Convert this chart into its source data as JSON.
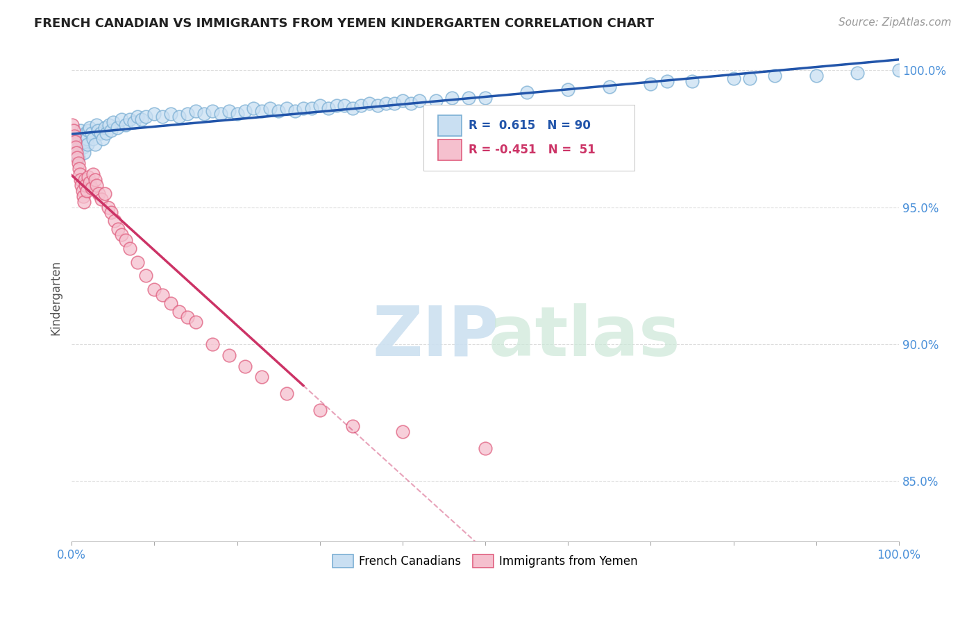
{
  "title": "FRENCH CANADIAN VS IMMIGRANTS FROM YEMEN KINDERGARTEN CORRELATION CHART",
  "source": "Source: ZipAtlas.com",
  "ylabel": "Kindergarten",
  "xmin": 0.0,
  "xmax": 1.0,
  "ymin": 0.828,
  "ymax": 1.006,
  "y_tick_values": [
    0.85,
    0.9,
    0.95,
    1.0
  ],
  "y_tick_labels": [
    "85.0%",
    "90.0%",
    "95.0%",
    "100.0%"
  ],
  "x_tick_positions": [
    0.0,
    0.1,
    0.2,
    0.3,
    0.4,
    0.5,
    0.6,
    0.7,
    0.8,
    0.9,
    1.0
  ],
  "grid_color": "#dddddd",
  "background_color": "#ffffff",
  "blue_edge_color": "#7bafd4",
  "blue_face_color": "#c9dff2",
  "pink_edge_color": "#e06080",
  "pink_face_color": "#f5c0ce",
  "blue_line_color": "#2255aa",
  "pink_line_color": "#cc3366",
  "R_blue": 0.615,
  "N_blue": 90,
  "R_pink": -0.451,
  "N_pink": 51,
  "legend_label_blue": "French Canadians",
  "legend_label_pink": "Immigrants from Yemen",
  "blue_x": [
    0.001,
    0.002,
    0.003,
    0.004,
    0.005,
    0.006,
    0.007,
    0.008,
    0.009,
    0.01,
    0.011,
    0.012,
    0.013,
    0.014,
    0.015,
    0.016,
    0.017,
    0.018,
    0.019,
    0.02,
    0.022,
    0.024,
    0.026,
    0.028,
    0.03,
    0.032,
    0.035,
    0.038,
    0.04,
    0.042,
    0.045,
    0.048,
    0.05,
    0.055,
    0.06,
    0.065,
    0.07,
    0.075,
    0.08,
    0.085,
    0.09,
    0.1,
    0.11,
    0.12,
    0.13,
    0.14,
    0.15,
    0.16,
    0.17,
    0.18,
    0.19,
    0.2,
    0.21,
    0.22,
    0.23,
    0.24,
    0.25,
    0.26,
    0.27,
    0.28,
    0.29,
    0.3,
    0.31,
    0.32,
    0.33,
    0.34,
    0.35,
    0.36,
    0.37,
    0.38,
    0.39,
    0.4,
    0.41,
    0.42,
    0.44,
    0.46,
    0.48,
    0.5,
    0.55,
    0.6,
    0.65,
    0.7,
    0.72,
    0.75,
    0.8,
    0.82,
    0.85,
    0.9,
    0.95,
    1.0
  ],
  "blue_y": [
    0.975,
    0.974,
    0.973,
    0.972,
    0.971,
    0.97,
    0.969,
    0.968,
    0.972,
    0.975,
    0.978,
    0.976,
    0.974,
    0.972,
    0.97,
    0.974,
    0.977,
    0.975,
    0.973,
    0.978,
    0.979,
    0.977,
    0.975,
    0.973,
    0.98,
    0.978,
    0.977,
    0.975,
    0.979,
    0.977,
    0.98,
    0.978,
    0.981,
    0.979,
    0.982,
    0.98,
    0.982,
    0.981,
    0.983,
    0.982,
    0.983,
    0.984,
    0.983,
    0.984,
    0.983,
    0.984,
    0.985,
    0.984,
    0.985,
    0.984,
    0.985,
    0.984,
    0.985,
    0.986,
    0.985,
    0.986,
    0.985,
    0.986,
    0.985,
    0.986,
    0.986,
    0.987,
    0.986,
    0.987,
    0.987,
    0.986,
    0.987,
    0.988,
    0.987,
    0.988,
    0.988,
    0.989,
    0.988,
    0.989,
    0.989,
    0.99,
    0.99,
    0.99,
    0.992,
    0.993,
    0.994,
    0.995,
    0.996,
    0.996,
    0.997,
    0.997,
    0.998,
    0.998,
    0.999,
    1.0
  ],
  "pink_x": [
    0.001,
    0.002,
    0.003,
    0.004,
    0.005,
    0.006,
    0.007,
    0.008,
    0.009,
    0.01,
    0.011,
    0.012,
    0.013,
    0.014,
    0.015,
    0.016,
    0.017,
    0.018,
    0.02,
    0.022,
    0.024,
    0.026,
    0.028,
    0.03,
    0.033,
    0.036,
    0.04,
    0.044,
    0.048,
    0.052,
    0.056,
    0.06,
    0.065,
    0.07,
    0.08,
    0.09,
    0.1,
    0.11,
    0.12,
    0.13,
    0.14,
    0.15,
    0.17,
    0.19,
    0.21,
    0.23,
    0.26,
    0.3,
    0.34,
    0.4,
    0.5
  ],
  "pink_y": [
    0.98,
    0.978,
    0.976,
    0.974,
    0.972,
    0.97,
    0.968,
    0.966,
    0.964,
    0.962,
    0.96,
    0.958,
    0.956,
    0.954,
    0.952,
    0.96,
    0.958,
    0.956,
    0.961,
    0.959,
    0.957,
    0.962,
    0.96,
    0.958,
    0.955,
    0.953,
    0.955,
    0.95,
    0.948,
    0.945,
    0.942,
    0.94,
    0.938,
    0.935,
    0.93,
    0.925,
    0.92,
    0.918,
    0.915,
    0.912,
    0.91,
    0.908,
    0.9,
    0.896,
    0.892,
    0.888,
    0.882,
    0.876,
    0.87,
    0.868,
    0.862
  ]
}
